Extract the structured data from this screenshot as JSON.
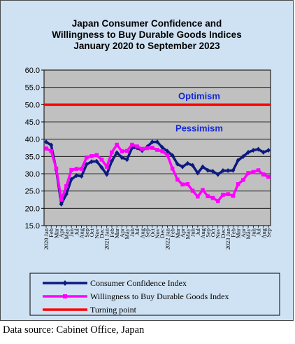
{
  "chart_data": {
    "type": "line",
    "title": [
      "Japan Consumer Confidence and",
      "Willingness to Buy Durable Goods Indices",
      "January 2020 to September  2023"
    ],
    "xlabel": "",
    "ylabel": "",
    "ylim": [
      15.0,
      60.0
    ],
    "yticks": [
      "15.0",
      "20.0",
      "25.0",
      "30.0",
      "35.0",
      "40.0",
      "45.0",
      "50.0",
      "55.0",
      "60.0"
    ],
    "x": [
      "2020 Jan",
      "Feb",
      "Mar",
      "Apr",
      "May",
      "Jun",
      "Jul",
      "Aug",
      "Sep",
      "Oct",
      "Nov",
      "Dec",
      "2021 Jan",
      "Feb",
      "Mar",
      "Apr",
      "May",
      "Jun",
      "Jul",
      "Aug",
      "Sep",
      "Oct",
      "Nov",
      "Dec",
      "2022 Jan",
      "Feb",
      "Mar",
      "Apr",
      "May",
      "Jun",
      "Jul",
      "Aug",
      "Sep",
      "Oct",
      "Nov",
      "Dec",
      "2023 Jan",
      "Feb",
      "Mar",
      "Apr",
      "May",
      "Jun",
      "Jul",
      "Aug",
      "Sep"
    ],
    "grid": true,
    "legend_position": "bottom",
    "series": [
      {
        "name": "Consumer Confidence Index",
        "color": "#0d1a80",
        "values": [
          39.2,
          38.3,
          31.1,
          21.2,
          24.1,
          28.4,
          29.5,
          29.3,
          32.7,
          33.5,
          33.6,
          31.8,
          29.8,
          33.7,
          36.1,
          34.7,
          34.1,
          37.5,
          37.5,
          36.7,
          37.8,
          39.2,
          39.2,
          37.6,
          36.5,
          35.3,
          32.8,
          32.0,
          33.0,
          32.4,
          30.2,
          32.0,
          31.0,
          30.7,
          29.8,
          30.9,
          30.9,
          31.0,
          33.9,
          35.0,
          36.2,
          36.8,
          37.1,
          36.2,
          36.8
        ]
      },
      {
        "name": "Willingness to Buy Durable Goods Index",
        "color": "#ff00ff",
        "values": [
          37.3,
          36.6,
          31.5,
          22.5,
          26.4,
          31.1,
          31.4,
          31.4,
          34.7,
          35.1,
          35.4,
          34.1,
          32.0,
          36.2,
          38.4,
          36.5,
          36.6,
          38.4,
          37.9,
          37.2,
          37.4,
          37.5,
          36.9,
          36.5,
          35.4,
          31.5,
          28.3,
          26.9,
          27.0,
          25.1,
          23.4,
          25.3,
          23.5,
          23.0,
          22.1,
          23.9,
          24.1,
          23.6,
          27.0,
          28.2,
          30.2,
          30.5,
          31.0,
          29.8,
          29.1
        ]
      }
    ],
    "reference_line": {
      "name": "Turning point",
      "value": 50.0,
      "color": "#ff0000"
    },
    "annotations": [
      {
        "text": "Optimism",
        "color": "#1428d6"
      },
      {
        "text": "Pessimism",
        "color": "#1428d6"
      }
    ]
  },
  "source_note": "Data source: Cabinet Office, Japan"
}
